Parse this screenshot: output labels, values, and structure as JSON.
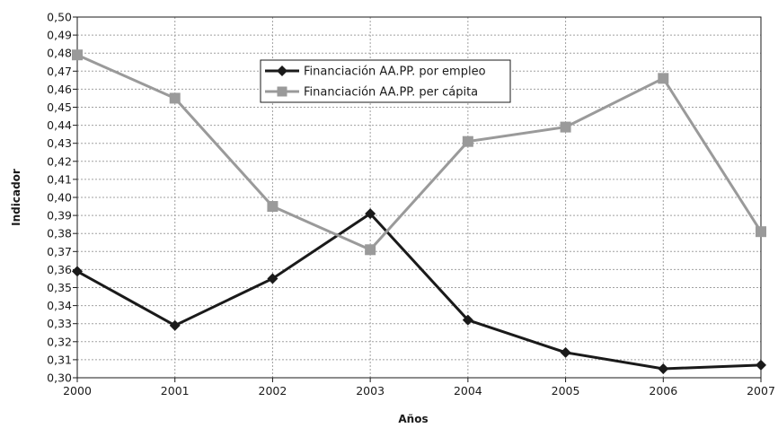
{
  "chart_data": {
    "type": "line",
    "xlabel": "Años",
    "ylabel": "Indicador",
    "x": [
      "2000",
      "2001",
      "2002",
      "2003",
      "2004",
      "2005",
      "2006",
      "2007"
    ],
    "ylim": [
      0.3,
      0.5
    ],
    "ystep": 0.01,
    "ytick_labels": [
      "0,30",
      "0,31",
      "0,32",
      "0,33",
      "0,34",
      "0,35",
      "0,36",
      "0,37",
      "0,38",
      "0,39",
      "0,40",
      "0,41",
      "0,42",
      "0,43",
      "0,44",
      "0,45",
      "0,46",
      "0,47",
      "0,48",
      "0,49",
      "0,50"
    ],
    "grid": true,
    "legend_position": "top-center",
    "series": [
      {
        "name": "Financiación AA.PP. por empleo",
        "values": [
          0.359,
          0.329,
          0.355,
          0.391,
          0.332,
          0.314,
          0.305,
          0.307
        ],
        "color": "#1a1a1a",
        "marker": "diamond"
      },
      {
        "name": "Financiación AA.PP. per cápita",
        "values": [
          0.479,
          0.455,
          0.395,
          0.371,
          0.431,
          0.439,
          0.466,
          0.381
        ],
        "color": "#9a9a9a",
        "marker": "square"
      }
    ]
  }
}
